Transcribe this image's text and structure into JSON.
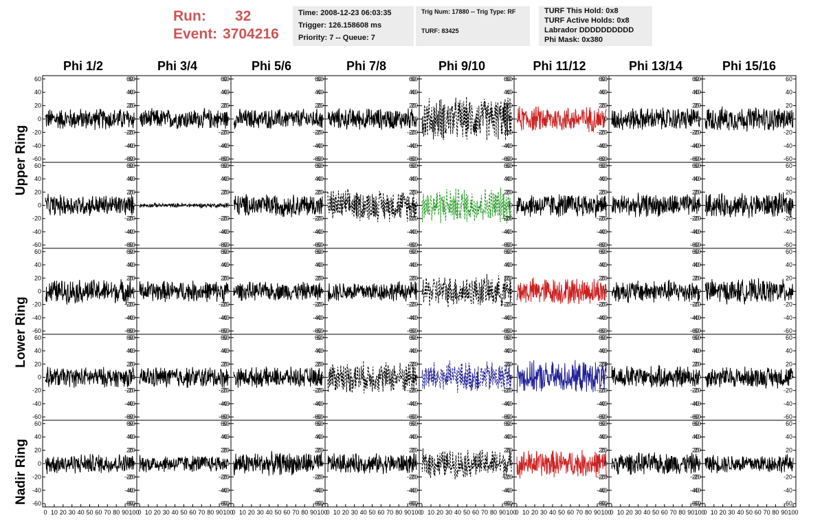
{
  "run": {
    "label": "Run:",
    "value": "32"
  },
  "event": {
    "label": "Event:",
    "value": "3704216"
  },
  "info_time": {
    "time": "Time: 2008-12-23 06:03:35",
    "trigger": "Trigger: 126.158608 ms",
    "priority": "Priority: 7 -- Queue: 7"
  },
  "info_trig": {
    "trig": "Trig Num: 17880 -- Trig Type: RF",
    "turf": "TURF: 83425"
  },
  "info_turf": {
    "hold": "TURF This Hold: 0x8",
    "active": "TURF Active Holds: 0x8",
    "labrador": "Labrador DDDDDDDDDD",
    "mask": "Phi Mask: 0x380"
  },
  "columns": [
    "Phi 1/2",
    "Phi 3/4",
    "Phi 5/6",
    "Phi 7/8",
    "Phi 9/10",
    "Phi 11/12",
    "Phi 13/14",
    "Phi 15/16"
  ],
  "rings": [
    "Upper Ring",
    "Lower Ring",
    "Nadir Ring"
  ],
  "colors": {
    "run_text": "#cc5555",
    "black": "#000000",
    "red": "#cc2222",
    "green": "#229922",
    "blue": "#222299"
  },
  "chart_data": {
    "type": "line",
    "description_rows": 5,
    "description_cols": 8,
    "ylim": [
      -65,
      65
    ],
    "xlim": [
      0,
      100
    ],
    "y_ticks": [
      -60,
      -40,
      -20,
      0,
      20,
      40,
      60
    ],
    "x_ticks": [
      0,
      10,
      20,
      30,
      40,
      50,
      60,
      70,
      80,
      90,
      100
    ],
    "x_tick_labels_bottom": "0 10 20 30 40 50 60 70 80 90 100",
    "panels": [
      [
        {
          "style": "solid",
          "color": "#000000",
          "amp": 15
        },
        {
          "style": "solid",
          "color": "#000000",
          "amp": 14
        },
        {
          "style": "solid",
          "color": "#000000",
          "amp": 14
        },
        {
          "style": "solid",
          "color": "#000000",
          "amp": 15
        },
        {
          "style": "dashed",
          "color": "#000000",
          "amp": 30
        },
        {
          "style": "solid",
          "color": "#cc2222",
          "amp": 18
        },
        {
          "style": "solid",
          "color": "#000000",
          "amp": 16
        },
        {
          "style": "solid",
          "color": "#000000",
          "amp": 17
        }
      ],
      [
        {
          "style": "solid",
          "color": "#000000",
          "amp": 15
        },
        {
          "style": "solid",
          "color": "#000000",
          "amp": 3
        },
        {
          "style": "solid",
          "color": "#000000",
          "amp": 16
        },
        {
          "style": "dashed",
          "color": "#000000",
          "amp": 22
        },
        {
          "style": "dashed",
          "color": "#229922",
          "amp": 25
        },
        {
          "style": "solid",
          "color": "#000000",
          "amp": 17
        },
        {
          "style": "solid",
          "color": "#000000",
          "amp": 16
        },
        {
          "style": "solid",
          "color": "#000000",
          "amp": 17
        }
      ],
      [
        {
          "style": "solid",
          "color": "#000000",
          "amp": 17
        },
        {
          "style": "solid",
          "color": "#000000",
          "amp": 15
        },
        {
          "style": "solid",
          "color": "#000000",
          "amp": 13
        },
        {
          "style": "solid",
          "color": "#000000",
          "amp": 14
        },
        {
          "style": "dashed",
          "color": "#000000",
          "amp": 22
        },
        {
          "style": "solid",
          "color": "#cc2222",
          "amp": 19
        },
        {
          "style": "solid",
          "color": "#000000",
          "amp": 16
        },
        {
          "style": "solid",
          "color": "#000000",
          "amp": 17
        }
      ],
      [
        {
          "style": "solid",
          "color": "#000000",
          "amp": 14
        },
        {
          "style": "solid",
          "color": "#000000",
          "amp": 15
        },
        {
          "style": "solid",
          "color": "#000000",
          "amp": 14
        },
        {
          "style": "dashed",
          "color": "#000000",
          "amp": 22
        },
        {
          "style": "dashed",
          "color": "#222299",
          "amp": 22
        },
        {
          "style": "solid",
          "color": "#222299",
          "amp": 22
        },
        {
          "style": "solid",
          "color": "#000000",
          "amp": 16
        },
        {
          "style": "solid",
          "color": "#000000",
          "amp": 15
        }
      ],
      [
        {
          "style": "solid",
          "color": "#000000",
          "amp": 14
        },
        {
          "style": "solid",
          "color": "#000000",
          "amp": 12
        },
        {
          "style": "solid",
          "color": "#000000",
          "amp": 16
        },
        {
          "style": "solid",
          "color": "#000000",
          "amp": 14
        },
        {
          "style": "dashed",
          "color": "#000000",
          "amp": 20
        },
        {
          "style": "solid",
          "color": "#cc2222",
          "amp": 19
        },
        {
          "style": "solid",
          "color": "#000000",
          "amp": 15
        },
        {
          "style": "solid",
          "color": "#000000",
          "amp": 13
        }
      ]
    ]
  }
}
